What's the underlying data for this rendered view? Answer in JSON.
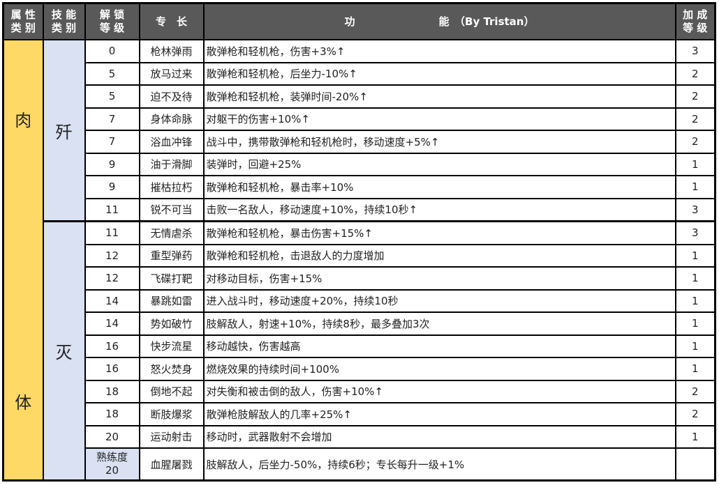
{
  "header": {
    "attr_category": "属 性 类 别",
    "skill_category": "技 能 类 别",
    "unlock_level": "解 锁 等 级",
    "perk": "专　长",
    "function": "功　　　　　　　　能　（By Tristan）",
    "bonus_level": "加 成 等 级"
  },
  "colors": {
    "header_bg": "#595959",
    "attr_bg": "#FFD966",
    "category_bg": "#D9E1F2"
  },
  "attribute": {
    "label_top": "肉",
    "label_bottom": "体"
  },
  "categories": [
    {
      "label": "歼"
    },
    {
      "label": "灭"
    }
  ],
  "rows": [
    {
      "level": "0",
      "perk": "枪林弹雨",
      "effect": "散弹枪和轻机枪，伤害+3%↑",
      "bonus": "3"
    },
    {
      "level": "5",
      "perk": "放马过来",
      "effect": "散弹枪和轻机枪，后坐力-10%↑",
      "bonus": "2"
    },
    {
      "level": "5",
      "perk": "迫不及待",
      "effect": "散弹枪和轻机枪，装弹时间-20%↑",
      "bonus": "2"
    },
    {
      "level": "7",
      "perk": "身体命脉",
      "effect": "对躯干的伤害+10%↑",
      "bonus": "2"
    },
    {
      "level": "7",
      "perk": "浴血冲锋",
      "effect": "战斗中，携带散弹枪和轻机枪时，移动速度+5%↑",
      "bonus": "2"
    },
    {
      "level": "9",
      "perk": "油于滑脚",
      "effect": "装弹时，回避+25%",
      "bonus": "1"
    },
    {
      "level": "9",
      "perk": "摧枯拉朽",
      "effect": "散弹枪和轻机枪，暴击率+10%",
      "bonus": "1"
    },
    {
      "level": "11",
      "perk": "锐不可当",
      "effect": "击败一名敌人，移动速度+10%，持续10秒↑",
      "bonus": "3"
    },
    {
      "level": "11",
      "perk": "无情虐杀",
      "effect": "散弹枪和轻机枪，暴击伤害+15%↑",
      "bonus": "3"
    },
    {
      "level": "12",
      "perk": "重型弹药",
      "effect": "散弹枪和轻机枪，击退敌人的力度增加",
      "bonus": "1"
    },
    {
      "level": "12",
      "perk": "飞碟打靶",
      "effect": "对移动目标，伤害+15%",
      "bonus": "1"
    },
    {
      "level": "14",
      "perk": "暴跳如雷",
      "effect": "进入战斗时，移动速度+20%，持续10秒",
      "bonus": "1"
    },
    {
      "level": "14",
      "perk": "势如破竹",
      "effect": "肢解敌人，射速+10%，持续8秒，最多叠加3次",
      "bonus": "1"
    },
    {
      "level": "16",
      "perk": "快步流星",
      "effect": "移动越快，伤害越高",
      "bonus": "1"
    },
    {
      "level": "16",
      "perk": "怒火焚身",
      "effect": "燃烧效果的持续时间+100%",
      "bonus": "1"
    },
    {
      "level": "18",
      "perk": "倒地不起",
      "effect": "对失衡和被击倒的敌人，伤害+10%↑",
      "bonus": "2"
    },
    {
      "level": "18",
      "perk": "断肢爆浆",
      "effect": "散弹枪肢解敌人的几率+25%↑",
      "bonus": "2"
    },
    {
      "level": "20",
      "perk": "运动射击",
      "effect": "移动时，武器散射不会增加",
      "bonus": "1"
    },
    {
      "level": "熟练度 20",
      "perk": "血腥屠戮",
      "effect": "肢解敌人，后坐力-50%，持续6秒；专长每升一级+1%",
      "bonus": ""
    }
  ]
}
